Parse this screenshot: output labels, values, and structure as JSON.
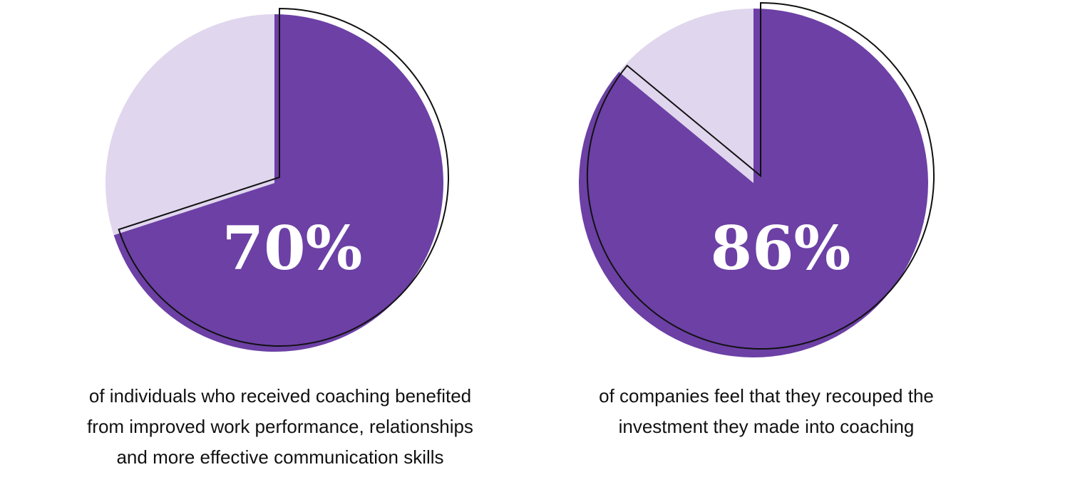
{
  "colors": {
    "primary": "#6c40a5",
    "remainder": "#e0d6ee",
    "outline": "#111111",
    "label": "#ffffff"
  },
  "chart_data": [
    {
      "type": "pie",
      "value_label": "70%",
      "slices": [
        {
          "value": 70,
          "color": "#6c40a5"
        },
        {
          "value": 30,
          "color": "#e0d6ee"
        }
      ],
      "caption_lines": [
        "of individuals who received coaching benefited",
        "from improved work performance, relationships",
        "and more effective communication skills"
      ]
    },
    {
      "type": "pie",
      "value_label": "86%",
      "slices": [
        {
          "value": 86,
          "color": "#6c40a5"
        },
        {
          "value": 14,
          "color": "#e0d6ee"
        }
      ],
      "caption_lines": [
        "of companies feel that they recouped the",
        "investment they made into coaching"
      ]
    }
  ]
}
